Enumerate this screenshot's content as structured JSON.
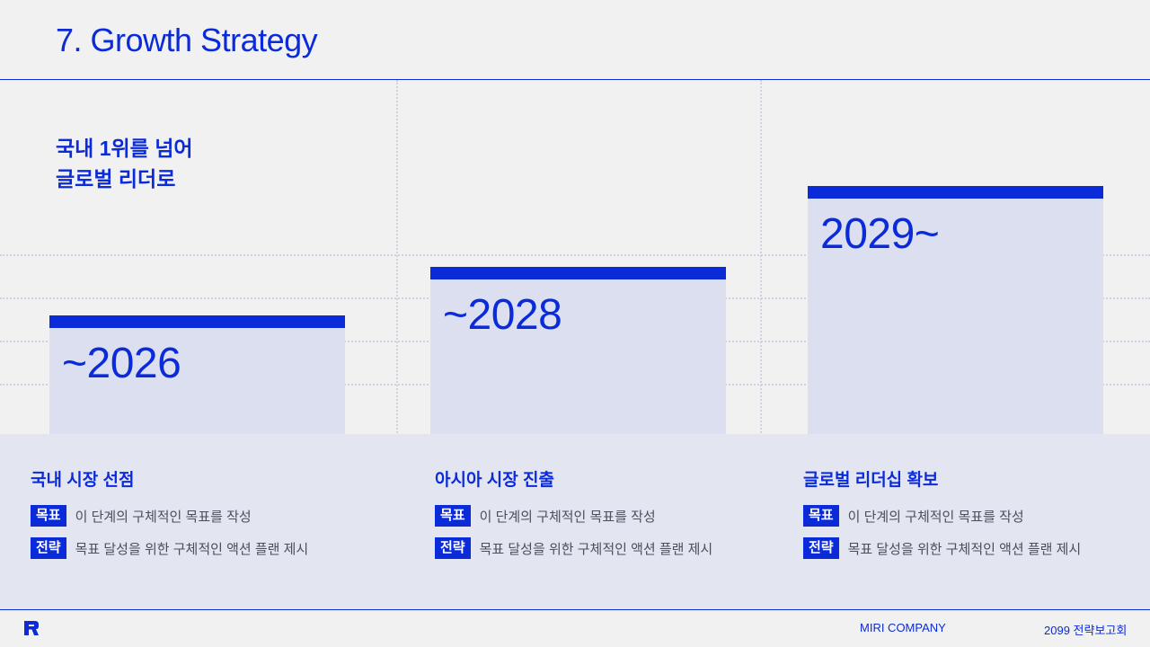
{
  "slide": {
    "title": "7. Growth Strategy",
    "headline_line1": "국내 1위를 넘어",
    "headline_line2": "글로벌 리더로"
  },
  "stages": [
    {
      "year": "~2026",
      "title": "국내 시장 선점",
      "goal_tag": "목표",
      "goal_text": "이 단계의 구체적인 목표를 작성",
      "strategy_tag": "전략",
      "strategy_text": "목표 달성을 위한 구체적인 액션 플랜 제시"
    },
    {
      "year": "~2028",
      "title": "아시아 시장 진출",
      "goal_tag": "목표",
      "goal_text": "이 단계의 구체적인 목표를 작성",
      "strategy_tag": "전략",
      "strategy_text": "목표 달성을 위한 구체적인 액션 플랜 제시"
    },
    {
      "year": "2029~",
      "title": "글로벌 리더십 확보",
      "goal_tag": "목표",
      "goal_text": "이 단계의 구체적인 목표를 작성",
      "strategy_tag": "전략",
      "strategy_text": "목표 달성을 위한 구체적인 액션 플랜 제시"
    }
  ],
  "footer": {
    "company": "MIRI COMPANY",
    "report": "2099 전략보고회",
    "logo_icon": "miri-logo-icon"
  },
  "colors": {
    "accent": "#0b2bd9",
    "background": "#f1f1f2",
    "bar_fill": "#dcdff0",
    "panel_fill": "#e3e5f1",
    "muted_text": "#4b4f5c"
  }
}
